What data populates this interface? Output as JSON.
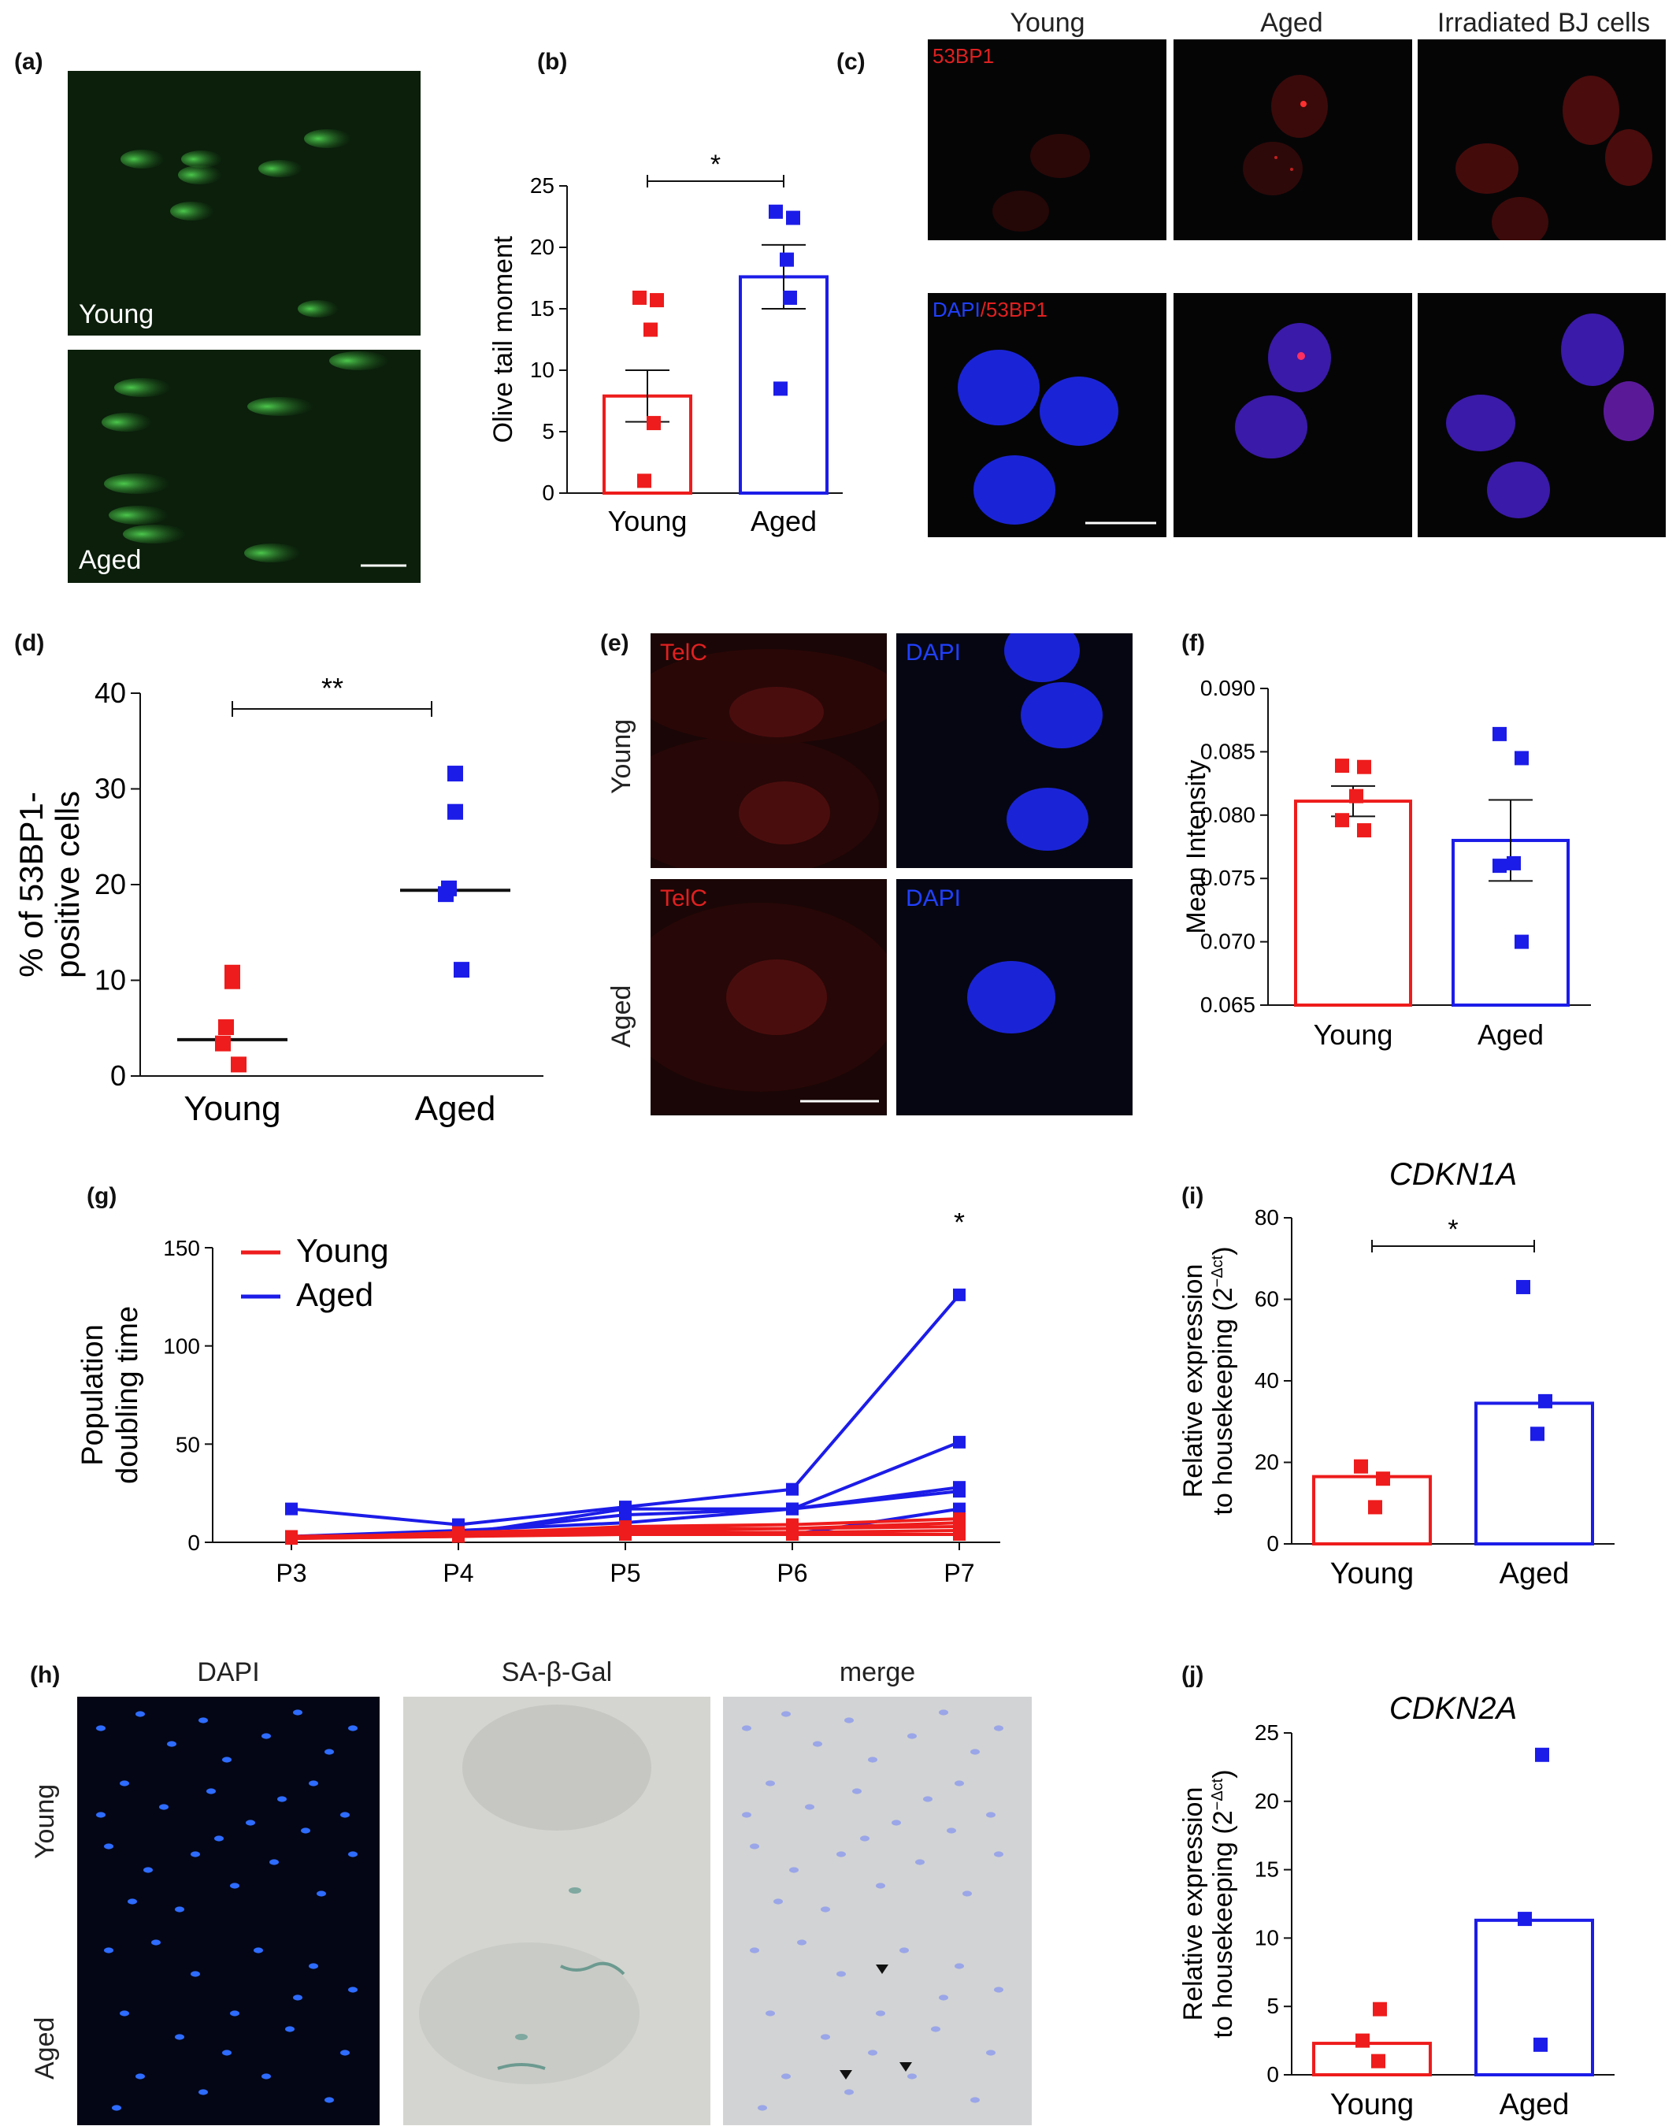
{
  "panel_labels": {
    "a": "(a)",
    "b": "(b)",
    "c": "(c)",
    "d": "(d)",
    "e": "(e)",
    "f": "(f)",
    "g": "(g)",
    "h": "(h)",
    "i": "(i)",
    "j": "(j)"
  },
  "panel_a": {
    "young_label": "Young",
    "aged_label": "Aged"
  },
  "panel_c": {
    "col_headers": [
      "Young",
      "Aged",
      "Irradiated BJ cells"
    ],
    "stain_53bp1": "53BP1",
    "stain_dapi": "DAPI",
    "stain_sep": "/",
    "stain_53bp1_b": "53BP1"
  },
  "panel_e": {
    "row_young": "Young",
    "row_aged": "Aged",
    "telc": "TelC",
    "dapi": "DAPI"
  },
  "panel_h": {
    "col_headers": [
      "DAPI",
      "SA-β-Gal",
      "merge"
    ],
    "row_young": "Young",
    "row_aged": "Aged"
  },
  "colors": {
    "young": "#ee1c1c",
    "aged": "#1c1ce8"
  },
  "chart_data": [
    {
      "id": "b",
      "type": "bar",
      "title": "",
      "ylabel": "Olive tail moment",
      "categories": [
        "Young",
        "Aged"
      ],
      "ylim": [
        0,
        25
      ],
      "yticks": [
        0,
        5,
        10,
        15,
        20,
        25
      ],
      "values": [
        7.9,
        17.6
      ],
      "sem": [
        2.1,
        2.6
      ],
      "points": [
        [
          15.9,
          15.7,
          13.3,
          5.7,
          1.0
        ],
        [
          22.9,
          22.4,
          19.0,
          15.9,
          8.5
        ]
      ],
      "annotation": {
        "text": "*",
        "from": "Young",
        "to": "Aged"
      }
    },
    {
      "id": "d",
      "type": "scatter",
      "title": "",
      "ylabel": "% of 53BP1-positive cells",
      "ylabel_lines": [
        "% of 53BP1-",
        "positive cells"
      ],
      "categories": [
        "Young",
        "Aged"
      ],
      "ylim": [
        0,
        40
      ],
      "yticks": [
        0,
        10,
        20,
        30,
        40
      ],
      "medians": [
        3.8,
        19.4
      ],
      "points": [
        [
          10.8,
          9.9,
          5.1,
          3.4,
          1.2
        ],
        [
          31.6,
          27.6,
          19.6,
          19.0,
          11.1
        ]
      ],
      "annotation": {
        "text": "**",
        "from": "Young",
        "to": "Aged"
      }
    },
    {
      "id": "f",
      "type": "bar",
      "title": "",
      "ylabel": "Mean Intensity",
      "categories": [
        "Young",
        "Aged"
      ],
      "ylim": [
        0.065,
        0.09
      ],
      "yticks": [
        "0.065",
        "0.070",
        "0.075",
        "0.080",
        "0.085",
        "0.090"
      ],
      "values": [
        0.0811,
        0.078
      ],
      "sem": [
        0.0012,
        0.0032
      ],
      "points": [
        [
          0.0839,
          0.0838,
          0.0815,
          0.0796,
          0.0788
        ],
        [
          0.0864,
          0.0845,
          0.0762,
          0.076,
          0.07
        ]
      ]
    },
    {
      "id": "g",
      "type": "line",
      "title": "",
      "ylabel": "Population doubling time",
      "ylabel_lines": [
        "Population",
        "doubling time"
      ],
      "x": [
        "P3",
        "P4",
        "P5",
        "P6",
        "P7"
      ],
      "ylim": [
        0,
        150
      ],
      "yticks": [
        0,
        50,
        100,
        150
      ],
      "legend": [
        "Young",
        "Aged"
      ],
      "legend_position": "top-left",
      "annotation": {
        "text": "*",
        "at": "P7"
      },
      "series": [
        {
          "name": "Aged",
          "values": [
            17,
            9,
            18,
            27,
            126
          ]
        },
        {
          "name": "Aged",
          "values": [
            2,
            4,
            17,
            17,
            51
          ]
        },
        {
          "name": "Aged",
          "values": [
            3,
            5,
            14,
            17,
            28
          ]
        },
        {
          "name": "Aged",
          "values": [
            3,
            6,
            10,
            17,
            26
          ]
        },
        {
          "name": "Aged",
          "values": [
            3,
            5,
            5,
            4,
            17
          ]
        },
        {
          "name": "Young",
          "values": [
            3,
            4,
            8,
            9,
            12
          ]
        },
        {
          "name": "Young",
          "values": [
            2,
            5,
            7,
            7,
            10
          ]
        },
        {
          "name": "Young",
          "values": [
            2,
            4,
            6,
            7,
            8
          ]
        },
        {
          "name": "Young",
          "values": [
            2,
            3,
            5,
            5,
            6
          ]
        },
        {
          "name": "Young",
          "values": [
            2,
            3,
            4,
            4,
            4
          ]
        }
      ]
    },
    {
      "id": "i",
      "type": "bar",
      "title": "CDKN1A",
      "ylabel": "Relative expression to housekeeping (2^-Δct)",
      "ylabel_line1": "Relative expression",
      "ylabel_line2": "to housekeeping (2",
      "ylabel_sup": "−Δct",
      "ylabel_end": ")",
      "categories": [
        "Young",
        "Aged"
      ],
      "ylim": [
        0,
        80
      ],
      "yticks": [
        0,
        20,
        40,
        60,
        80
      ],
      "values": [
        16.5,
        34.5
      ],
      "points": [
        [
          19,
          16,
          9
        ],
        [
          63,
          35,
          27
        ]
      ],
      "annotation": {
        "text": "*",
        "from": "Young",
        "to": "Aged"
      }
    },
    {
      "id": "j",
      "type": "bar",
      "title": "CDKN2A",
      "ylabel": "Relative expression to housekeeping (2^-Δct)",
      "ylabel_line1": "Relative expression",
      "ylabel_line2": "to housekeeping (2",
      "ylabel_sup": "−Δct",
      "ylabel_end": ")",
      "categories": [
        "Young",
        "Aged"
      ],
      "ylim": [
        0,
        25
      ],
      "yticks": [
        0,
        5,
        10,
        15,
        20,
        25
      ],
      "values": [
        2.3,
        11.3
      ],
      "points": [
        [
          4.8,
          2.5,
          1.0
        ],
        [
          23.4,
          11.4,
          2.2
        ]
      ]
    }
  ]
}
